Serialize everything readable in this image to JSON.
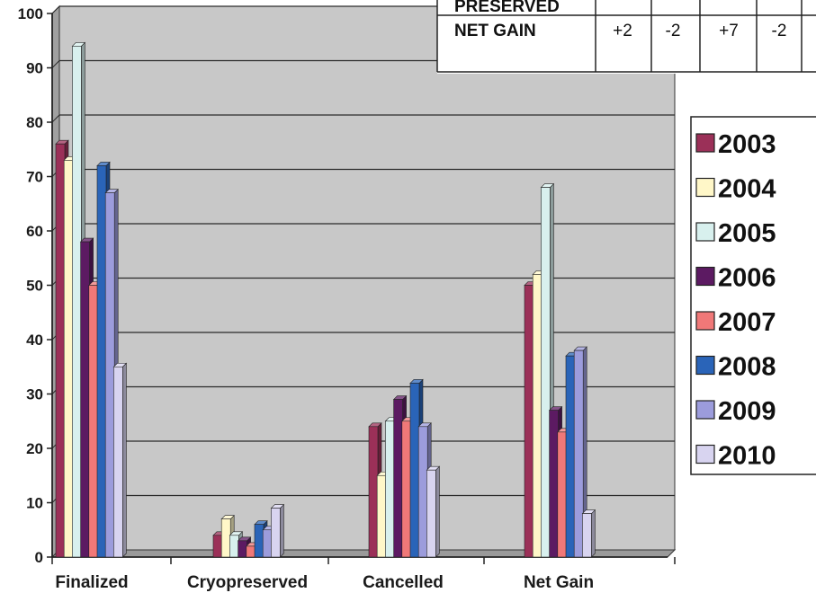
{
  "chart_data": {
    "type": "bar",
    "categories": [
      "Finalized",
      "Cryopreserved",
      "Cancelled",
      "Net Gain"
    ],
    "series": [
      {
        "name": "2003",
        "color": "#9b3058",
        "values": [
          76,
          4,
          24,
          50
        ]
      },
      {
        "name": "2004",
        "color": "#fff7c8",
        "values": [
          73,
          7,
          15,
          52
        ]
      },
      {
        "name": "2005",
        "color": "#d8f0ee",
        "values": [
          94,
          4,
          25,
          68
        ]
      },
      {
        "name": "2006",
        "color": "#5c1a62",
        "values": [
          58,
          3,
          29,
          27
        ]
      },
      {
        "name": "2007",
        "color": "#f07878",
        "values": [
          50,
          2,
          25,
          23
        ]
      },
      {
        "name": "2008",
        "color": "#2a64b8",
        "values": [
          72,
          6,
          32,
          37
        ]
      },
      {
        "name": "2009",
        "color": "#9c9cdc",
        "values": [
          67,
          5,
          24,
          38
        ]
      },
      {
        "name": "2010",
        "color": "#d8d4f0",
        "values": [
          35,
          9,
          16,
          8
        ]
      }
    ],
    "yticks": [
      "0",
      "10",
      "20",
      "30",
      "40",
      "50",
      "60",
      "70",
      "80",
      "90",
      "100"
    ],
    "ylim": [
      0,
      100
    ],
    "grid": true,
    "legend": "right",
    "plot_background": "#c8c8c8"
  },
  "table": {
    "rows": [
      {
        "label": "PRESERVED",
        "cells": [
          "",
          "",
          "",
          "",
          ""
        ]
      },
      {
        "label": "NET GAIN",
        "cells": [
          "+2",
          "-2",
          "+7",
          "-2",
          ""
        ]
      }
    ]
  }
}
